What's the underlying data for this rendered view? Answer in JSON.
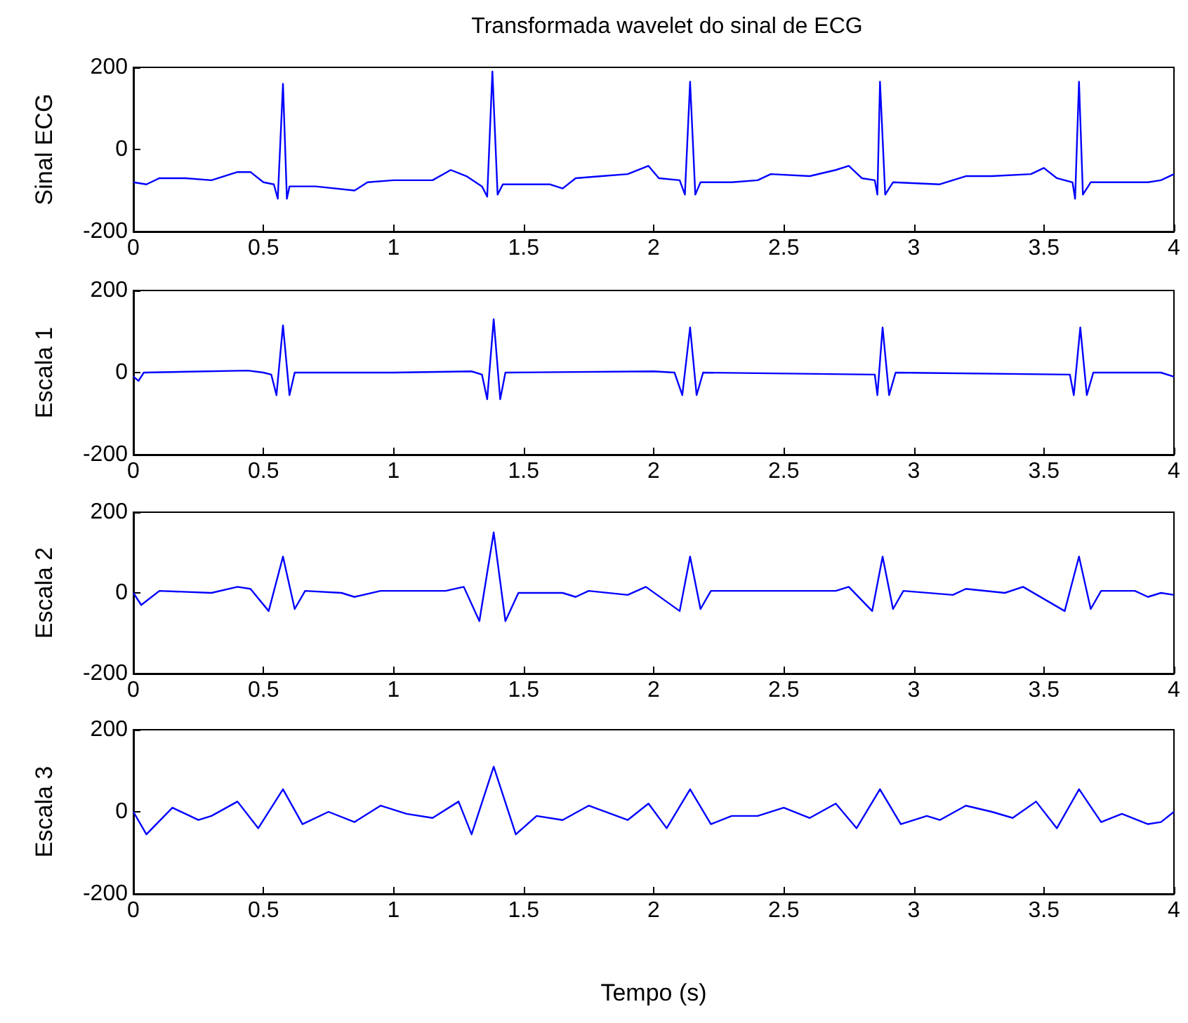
{
  "chart_data": [
    {
      "type": "line",
      "title": "Transformada wavelet do sinal de ECG",
      "ylabel": "Sinal ECG",
      "xlim": [
        0,
        4
      ],
      "xticks": [
        0,
        0.5,
        1,
        1.5,
        2,
        2.5,
        3,
        3.5,
        4
      ],
      "ylim": [
        -200,
        200
      ],
      "yticks": [
        -200,
        0,
        200
      ],
      "grid": false,
      "marker": "none",
      "series": [
        {
          "color": "#0000ff",
          "x": [
            0,
            0.05,
            0.1,
            0.2,
            0.3,
            0.4,
            0.45,
            0.5,
            0.54,
            0.555,
            0.575,
            0.59,
            0.6,
            0.7,
            0.85,
            0.9,
            1.0,
            1.15,
            1.22,
            1.28,
            1.34,
            1.36,
            1.38,
            1.4,
            1.42,
            1.6,
            1.65,
            1.7,
            1.8,
            1.9,
            1.98,
            2.02,
            2.1,
            2.12,
            2.14,
            2.16,
            2.18,
            2.3,
            2.4,
            2.45,
            2.6,
            2.7,
            2.75,
            2.8,
            2.85,
            2.86,
            2.87,
            2.89,
            2.92,
            3.1,
            3.2,
            3.3,
            3.45,
            3.5,
            3.55,
            3.61,
            3.62,
            3.635,
            3.65,
            3.68,
            3.9,
            3.95,
            4.0
          ],
          "values": [
            -80,
            -85,
            -70,
            -70,
            -75,
            -55,
            -55,
            -80,
            -85,
            -120,
            160,
            -120,
            -90,
            -90,
            -100,
            -80,
            -75,
            -75,
            -50,
            -65,
            -90,
            -115,
            190,
            -110,
            -85,
            -85,
            -95,
            -70,
            -65,
            -60,
            -40,
            -70,
            -75,
            -110,
            165,
            -110,
            -80,
            -80,
            -75,
            -60,
            -65,
            -50,
            -40,
            -70,
            -75,
            -110,
            165,
            -110,
            -80,
            -85,
            -65,
            -65,
            -60,
            -45,
            -70,
            -80,
            -120,
            165,
            -110,
            -80,
            -80,
            -75,
            -60
          ]
        }
      ]
    },
    {
      "type": "line",
      "ylabel": "Escala 1",
      "xlim": [
        0,
        4
      ],
      "xticks": [
        0,
        0.5,
        1,
        1.5,
        2,
        2.5,
        3,
        3.5,
        4
      ],
      "ylim": [
        -200,
        200
      ],
      "yticks": [
        -200,
        0,
        200
      ],
      "grid": false,
      "marker": "none",
      "series": [
        {
          "color": "#0000ff",
          "x": [
            0,
            0.02,
            0.04,
            0.44,
            0.5,
            0.53,
            0.55,
            0.575,
            0.6,
            0.62,
            1.0,
            1.3,
            1.34,
            1.36,
            1.385,
            1.41,
            1.43,
            2.0,
            2.08,
            2.11,
            2.14,
            2.165,
            2.19,
            2.85,
            2.86,
            2.88,
            2.905,
            2.93,
            3.6,
            3.615,
            3.64,
            3.665,
            3.69,
            3.95,
            4.0
          ],
          "values": [
            -10,
            -20,
            0,
            5,
            0,
            -5,
            -55,
            115,
            -55,
            0,
            0,
            3,
            -5,
            -65,
            130,
            -65,
            0,
            3,
            0,
            -55,
            110,
            -55,
            0,
            -5,
            -55,
            110,
            -55,
            0,
            -5,
            -55,
            110,
            -55,
            0,
            0,
            -10
          ]
        }
      ]
    },
    {
      "type": "line",
      "ylabel": "Escala 2",
      "xlim": [
        0,
        4
      ],
      "xticks": [
        0,
        0.5,
        1,
        1.5,
        2,
        2.5,
        3,
        3.5,
        4
      ],
      "ylim": [
        -200,
        200
      ],
      "yticks": [
        -200,
        0,
        200
      ],
      "grid": false,
      "marker": "none",
      "series": [
        {
          "color": "#0000ff",
          "x": [
            0,
            0.03,
            0.1,
            0.3,
            0.4,
            0.45,
            0.52,
            0.575,
            0.62,
            0.66,
            0.8,
            0.85,
            0.95,
            1.2,
            1.27,
            1.33,
            1.385,
            1.43,
            1.48,
            1.65,
            1.7,
            1.75,
            1.9,
            1.97,
            2.1,
            2.14,
            2.18,
            2.22,
            2.7,
            2.75,
            2.84,
            2.88,
            2.92,
            2.96,
            3.15,
            3.2,
            3.35,
            3.42,
            3.58,
            3.635,
            3.68,
            3.72,
            3.85,
            3.9,
            3.95,
            4.0
          ],
          "values": [
            0,
            -30,
            5,
            0,
            15,
            10,
            -45,
            90,
            -40,
            5,
            0,
            -10,
            5,
            5,
            15,
            -70,
            150,
            -70,
            0,
            0,
            -10,
            5,
            -5,
            15,
            -45,
            90,
            -40,
            5,
            5,
            15,
            -45,
            90,
            -40,
            5,
            -5,
            10,
            0,
            15,
            -45,
            90,
            -40,
            5,
            5,
            -10,
            0,
            -5
          ]
        }
      ]
    },
    {
      "type": "line",
      "ylabel": "Escala 3",
      "xlabel": "Tempo (s)",
      "xlim": [
        0,
        4
      ],
      "xticks": [
        0,
        0.5,
        1,
        1.5,
        2,
        2.5,
        3,
        3.5,
        4
      ],
      "ylim": [
        -200,
        200
      ],
      "yticks": [
        -200,
        0,
        200
      ],
      "grid": false,
      "marker": "none",
      "series": [
        {
          "color": "#0000ff",
          "x": [
            0,
            0.05,
            0.15,
            0.25,
            0.3,
            0.4,
            0.48,
            0.575,
            0.65,
            0.75,
            0.85,
            0.95,
            1.05,
            1.15,
            1.25,
            1.3,
            1.385,
            1.47,
            1.55,
            1.65,
            1.75,
            1.9,
            1.98,
            2.05,
            2.14,
            2.22,
            2.3,
            2.4,
            2.5,
            2.6,
            2.7,
            2.78,
            2.87,
            2.95,
            3.05,
            3.1,
            3.2,
            3.3,
            3.38,
            3.47,
            3.55,
            3.635,
            3.72,
            3.8,
            3.9,
            3.95,
            4.0
          ],
          "values": [
            0,
            -55,
            10,
            -20,
            -10,
            25,
            -40,
            55,
            -30,
            0,
            -25,
            15,
            -5,
            -15,
            25,
            -55,
            110,
            -55,
            -10,
            -20,
            15,
            -20,
            20,
            -40,
            55,
            -30,
            -10,
            -10,
            10,
            -15,
            20,
            -40,
            55,
            -30,
            -10,
            -20,
            15,
            0,
            -15,
            25,
            -40,
            55,
            -25,
            -5,
            -30,
            -25,
            0
          ]
        }
      ]
    }
  ]
}
